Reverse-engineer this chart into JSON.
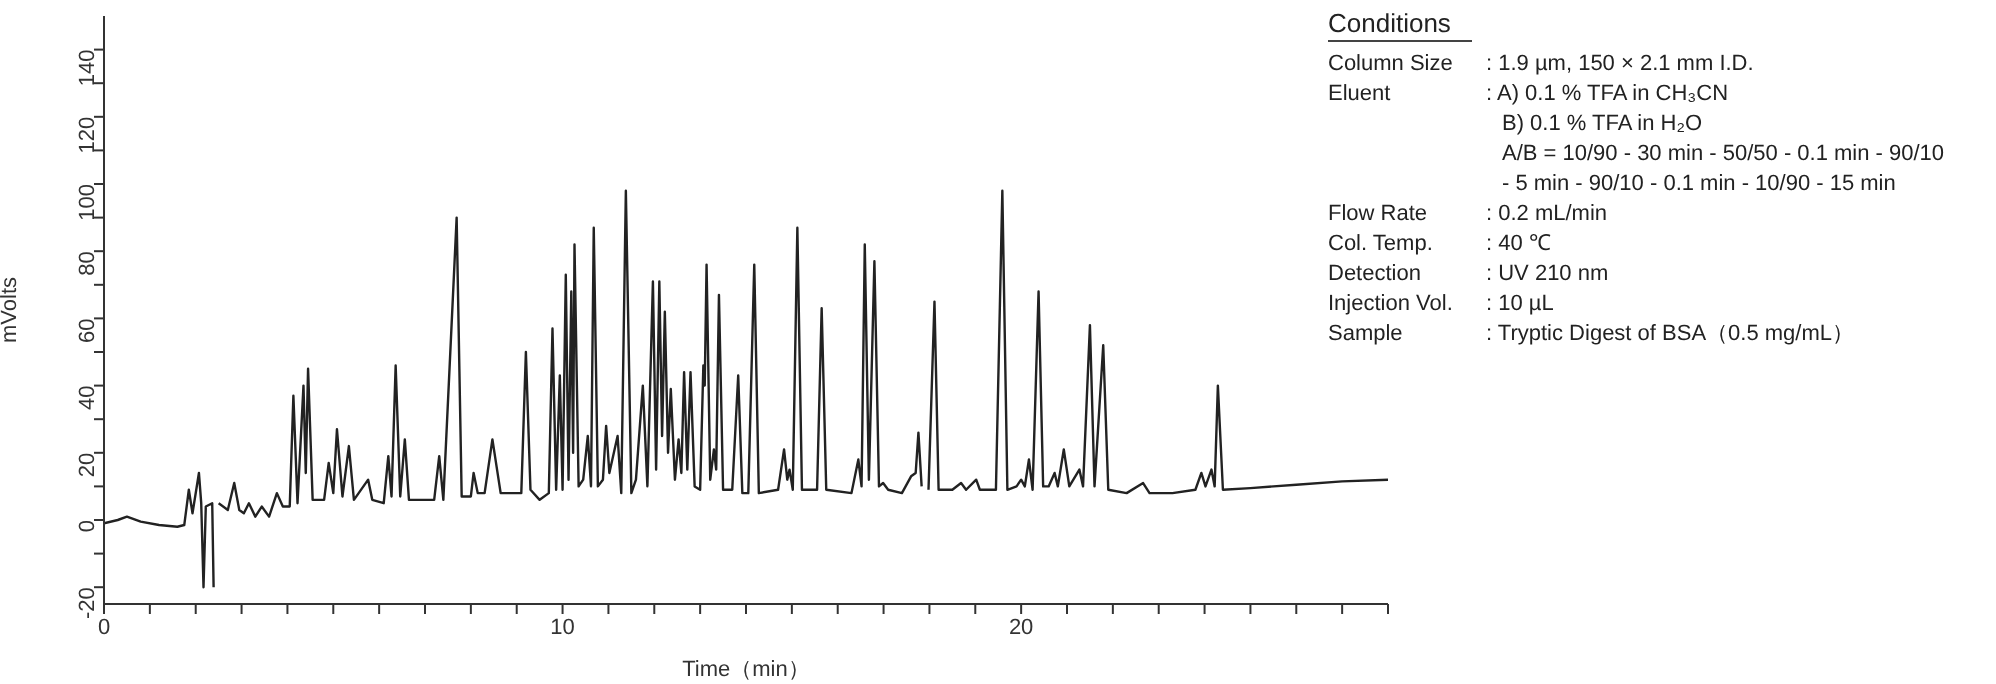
{
  "chart_data": {
    "type": "line",
    "xlabel": "Time（min）",
    "ylabel": "mVolts",
    "xlim": [
      0,
      28
    ],
    "ylim": [
      -25,
      150
    ],
    "xticks": [
      0,
      {
        "value": 1,
        "label": null
      },
      {
        "value": 2,
        "label": null
      },
      {
        "value": 3,
        "label": null
      },
      {
        "value": 4,
        "label": null
      },
      {
        "value": 5,
        "label": null
      },
      {
        "value": 6,
        "label": null
      },
      {
        "value": 7,
        "label": null
      },
      {
        "value": 8,
        "label": null
      },
      {
        "value": 9,
        "label": null
      },
      10,
      {
        "value": 11,
        "label": null
      },
      {
        "value": 12,
        "label": null
      },
      {
        "value": 13,
        "label": null
      },
      {
        "value": 14,
        "label": null
      },
      {
        "value": 15,
        "label": null
      },
      {
        "value": 16,
        "label": null
      },
      {
        "value": 17,
        "label": null
      },
      {
        "value": 18,
        "label": null
      },
      {
        "value": 19,
        "label": null
      },
      20,
      {
        "value": 21,
        "label": null
      },
      {
        "value": 22,
        "label": null
      },
      {
        "value": 23,
        "label": null
      },
      {
        "value": 24,
        "label": null
      },
      {
        "value": 25,
        "label": null
      },
      {
        "value": 26,
        "label": null
      },
      {
        "value": 27,
        "label": null
      },
      {
        "value": 28,
        "label": null
      }
    ],
    "yticks": [
      -20,
      {
        "value": -10,
        "label": null
      },
      0,
      {
        "value": 10,
        "label": null
      },
      20,
      {
        "value": 30,
        "label": null
      },
      40,
      {
        "value": 50,
        "label": null
      },
      60,
      {
        "value": 70,
        "label": null
      },
      80,
      {
        "value": 90,
        "label": null
      },
      100,
      {
        "value": 110,
        "label": null
      },
      120,
      {
        "value": 130,
        "label": null
      },
      140
    ],
    "grid": false,
    "legend": false,
    "marker": "none",
    "line_style": "solid",
    "annotations": [
      "Conditions",
      "Column Size : 1.9 µm, 150 × 2.1 mm I.D.",
      "Eluent : A) 0.1 % TFA in CH₃CN",
      "B) 0.1 % TFA in H₂O",
      "A/B = 10/90 - 30 min - 50/50 - 0.1 min - 90/10",
      "- 5 min - 90/10 - 0.1 min - 10/90 - 15 min",
      "Flow Rate : 0.2 mL/min",
      "Col. Temp. : 40 ℃",
      "Detection : UV 210 nm",
      "Injection Vol. : 10 µL",
      "Sample : Tryptic Digest of BSA（0.5 mg/mL）"
    ],
    "series": [
      {
        "color": "#222222",
        "x": [
          0,
          0.3,
          0.5,
          0.8,
          1.2,
          1.6,
          1.75,
          1.85,
          1.93,
          2.07,
          2.12,
          2.17,
          2.22,
          2.36,
          2.39,
          2.43,
          2.5,
          2.7,
          2.84,
          2.95,
          3.05,
          3.16,
          3.3,
          3.44,
          3.6,
          3.77,
          3.9,
          4.05,
          4.13,
          4.22,
          4.35,
          4.4,
          4.45,
          4.55,
          4.8,
          4.9,
          5.0,
          5.08,
          5.2,
          5.34,
          5.45,
          5.76,
          5.85,
          6.1,
          6.2,
          6.27,
          6.36,
          6.46,
          6.56,
          6.65,
          7.2,
          7.31,
          7.4,
          7.69,
          7.8,
          8.0,
          8.06,
          8.15,
          8.3,
          8.47,
          8.65,
          9.1,
          9.2,
          9.3,
          9.5,
          9.7,
          9.78,
          9.86,
          9.94,
          10.0,
          10.07,
          10.13,
          10.19,
          10.23,
          10.26,
          10.35,
          10.45,
          10.55,
          10.62,
          10.68,
          10.77,
          10.88,
          10.95,
          11.02,
          11.2,
          11.28,
          11.38,
          11.5,
          11.6,
          11.75,
          11.85,
          11.97,
          12.04,
          12.11,
          12.17,
          12.23,
          12.3,
          12.36,
          12.45,
          12.53,
          12.59,
          12.65,
          12.72,
          12.79,
          12.88,
          13.0,
          13.07,
          13.1,
          13.14,
          13.22,
          13.3,
          13.35,
          13.41,
          13.5,
          13.7,
          13.83,
          13.92,
          14.05,
          14.18,
          14.28,
          14.7,
          14.83,
          14.9,
          14.95,
          15.02,
          15.12,
          15.22,
          15.55,
          15.65,
          15.75,
          16.3,
          16.45,
          16.52,
          16.59,
          16.68,
          16.8,
          16.9,
          16.99,
          17.1,
          17.4,
          17.6,
          17.7,
          17.76,
          17.83,
          17.9,
          17.98,
          18.11,
          18.2,
          18.5,
          18.69,
          18.8,
          19.02,
          19.1,
          19.45,
          19.59,
          19.7,
          19.9,
          20.0,
          20.08,
          20.17,
          20.25,
          20.38,
          20.48,
          20.6,
          20.73,
          20.8,
          20.93,
          21.05,
          21.27,
          21.35,
          21.5,
          21.6,
          21.79,
          21.9,
          22.3,
          22.66,
          22.8,
          23.3,
          23.8,
          23.93,
          24.02,
          24.15,
          24.22,
          24.29,
          24.4,
          25,
          26,
          27,
          28
        ],
        "values": [
          -1,
          0,
          1,
          -0.5,
          -1.5,
          -2,
          -1.5,
          9,
          2,
          14,
          5,
          -20,
          4,
          5,
          -20,
          null,
          5,
          3,
          11,
          3,
          2,
          5,
          1,
          4,
          1,
          8,
          4,
          4,
          37,
          5,
          40,
          14,
          45,
          6,
          6,
          17,
          8,
          27,
          7,
          22,
          6,
          12,
          6,
          5,
          19,
          7,
          46,
          7,
          24,
          6,
          6,
          19,
          6,
          90,
          7,
          7,
          14,
          8,
          8,
          24,
          8,
          8,
          50,
          9,
          6,
          8,
          57,
          9,
          43,
          9,
          73,
          12,
          68,
          20,
          82,
          10,
          12,
          25,
          10,
          87,
          10,
          12,
          28,
          14,
          25,
          8,
          98,
          8,
          12,
          40,
          10,
          71,
          15,
          71,
          25,
          62,
          20,
          39,
          12,
          24,
          14,
          44,
          15,
          44,
          10,
          9,
          46,
          40,
          76,
          12,
          21,
          15,
          67,
          9,
          9,
          43,
          8,
          8,
          76,
          8,
          9,
          21,
          12,
          15,
          9,
          87,
          9,
          9,
          63,
          9,
          8,
          18,
          10,
          82,
          12,
          77,
          10,
          11,
          9,
          8,
          13,
          14,
          26,
          10,
          null,
          9,
          65,
          9,
          9,
          11,
          9,
          12,
          9,
          9,
          98,
          9,
          10,
          12,
          10,
          18,
          9,
          68,
          10,
          10,
          14,
          10,
          21,
          10,
          15,
          10,
          58,
          10,
          52,
          9,
          8,
          11,
          8,
          8,
          9,
          14,
          10,
          15,
          10,
          40,
          9,
          9.5,
          10.5,
          11.5,
          12
        ]
      }
    ]
  }
}
